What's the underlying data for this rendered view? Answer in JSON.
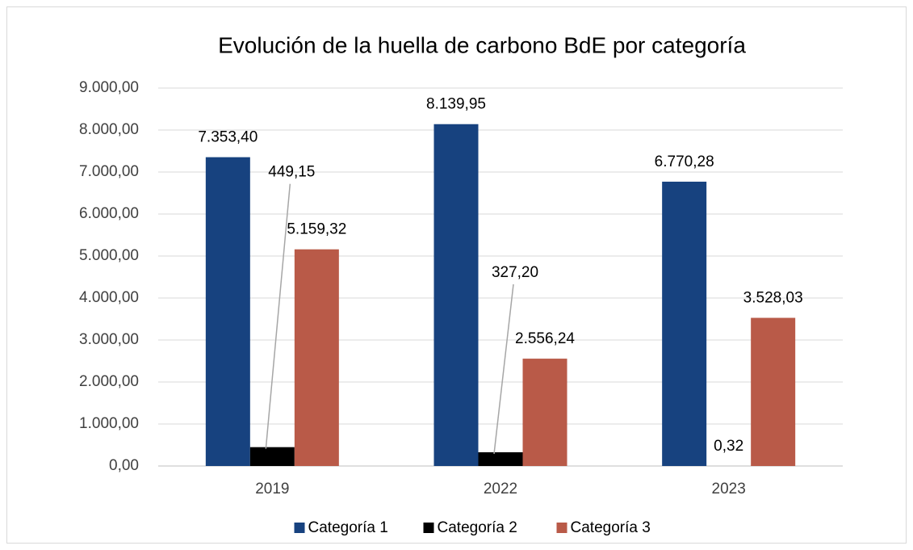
{
  "chart_data": {
    "type": "bar",
    "title": "Evolución de la huella de carbono BdE por categoría",
    "categories": [
      "2019",
      "2022",
      "2023"
    ],
    "series": [
      {
        "name": "Categoría 1",
        "color": "#17427f",
        "values": [
          7353.4,
          8139.95,
          6770.28
        ],
        "value_labels": [
          "7.353,40",
          "8.139,95",
          "6.770,28"
        ]
      },
      {
        "name": "Categoría 2",
        "color": "#000000",
        "values": [
          449.15,
          327.2,
          0.32
        ],
        "value_labels": [
          "449,15",
          "327,20",
          "0,32"
        ]
      },
      {
        "name": "Categoría 3",
        "color": "#b95a48",
        "values": [
          5159.32,
          2556.24,
          3528.03
        ],
        "value_labels": [
          "5.159,32",
          "2.556,24",
          "3.528,03"
        ]
      }
    ],
    "ylim": [
      0,
      9000
    ],
    "yticks": [
      {
        "value": 0,
        "label": "0,00"
      },
      {
        "value": 1000,
        "label": "1.000,00"
      },
      {
        "value": 2000,
        "label": "2.000,00"
      },
      {
        "value": 3000,
        "label": "3.000,00"
      },
      {
        "value": 4000,
        "label": "4.000,00"
      },
      {
        "value": 5000,
        "label": "5.000,00"
      },
      {
        "value": 6000,
        "label": "6.000,00"
      },
      {
        "value": 7000,
        "label": "7.000,00"
      },
      {
        "value": 8000,
        "label": "8.000,00"
      },
      {
        "value": 9000,
        "label": "9.000,00"
      }
    ],
    "grid": true,
    "legend": "bottom"
  }
}
